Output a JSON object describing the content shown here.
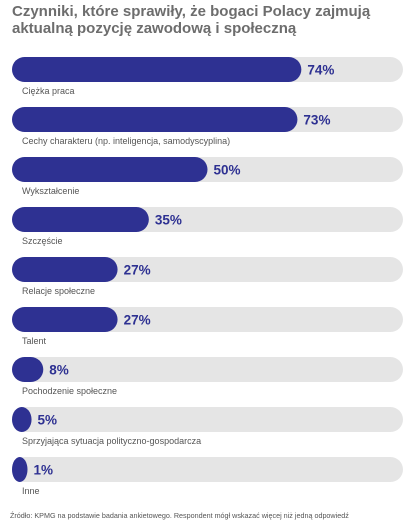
{
  "chart_data": {
    "type": "bar",
    "orientation": "horizontal",
    "title": "Czynniki, które sprawiły, że bogaci Polacy zajmują aktualną pozycję zawodową i społeczną",
    "categories": [
      "Ciężka praca",
      "Cechy charakteru (np. inteligencja, samodyscyplina)",
      "Wykształcenie",
      "Szczęście",
      "Relacje społeczne",
      "Talent",
      "Pochodzenie społeczne",
      "Sprzyjająca sytuacja polityczno-gospodarcza",
      "Inne"
    ],
    "values": [
      74,
      73,
      50,
      35,
      27,
      27,
      8,
      5,
      1
    ],
    "value_labels": [
      "74%",
      "73%",
      "50%",
      "35%",
      "27%",
      "27%",
      "8%",
      "5%",
      "1%"
    ],
    "xlim": [
      0,
      100
    ],
    "grid": false,
    "legend": "none",
    "colors": {
      "bar": "#2e3192",
      "track": "#e5e5e5",
      "label": "#2e3192",
      "category": "#555555"
    }
  },
  "source": "Źródło: KPMG na podstawie badania ankietowego. Respondent mógł wskazać więcej niż jedną odpowiedź"
}
